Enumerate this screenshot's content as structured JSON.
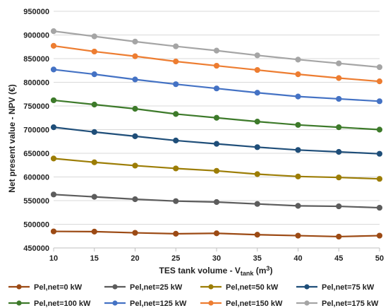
{
  "chart_data": {
    "type": "line",
    "xlabel": {
      "main": "TES tank volume - V",
      "sub": "tank",
      "unit": " (m",
      "sup": "3",
      "close": ")"
    },
    "ylabel": "Net present value - NPV (€)",
    "x": [
      10,
      15,
      20,
      25,
      30,
      35,
      40,
      45,
      50
    ],
    "xlim": [
      10,
      50
    ],
    "ylim": [
      450000,
      950000
    ],
    "yticks": [
      450000,
      500000,
      550000,
      600000,
      650000,
      700000,
      750000,
      800000,
      850000,
      900000,
      950000
    ],
    "grid": true,
    "legend_position": "bottom",
    "series": [
      {
        "name": "Pel,net=0 kW",
        "color": "#9c4a14",
        "values": [
          485000,
          484500,
          482000,
          480000,
          481000,
          478000,
          476000,
          474000,
          476000
        ]
      },
      {
        "name": "Pel,net=25 kW",
        "color": "#5c5c5c",
        "values": [
          563000,
          558000,
          553000,
          549000,
          547000,
          543000,
          539000,
          538000,
          535000
        ]
      },
      {
        "name": "Pel,net=50 kW",
        "color": "#9c7d05",
        "values": [
          639000,
          631000,
          624000,
          618000,
          613000,
          606000,
          601000,
          599000,
          596000
        ]
      },
      {
        "name": "Pel,net=75 kW",
        "color": "#1f4e79",
        "values": [
          705000,
          695000,
          686000,
          677000,
          670000,
          663000,
          657000,
          653000,
          649000
        ]
      },
      {
        "name": "Pel,net=100 kW",
        "color": "#3d7a2a",
        "values": [
          762000,
          753000,
          744000,
          733000,
          725000,
          717000,
          710000,
          705000,
          700000
        ]
      },
      {
        "name": "Pel,net=125 kW",
        "color": "#4472c4",
        "values": [
          827000,
          817000,
          806000,
          796000,
          787000,
          778000,
          770000,
          765000,
          760000
        ]
      },
      {
        "name": "Pel,net=150 kW",
        "color": "#ed7d31",
        "values": [
          877000,
          865000,
          855000,
          844000,
          835000,
          826000,
          817000,
          809000,
          802000
        ]
      },
      {
        "name": "Pel,net=175 kW",
        "color": "#a5a5a5",
        "values": [
          908000,
          897000,
          886000,
          876000,
          867000,
          857000,
          848000,
          840000,
          832000
        ]
      }
    ]
  }
}
